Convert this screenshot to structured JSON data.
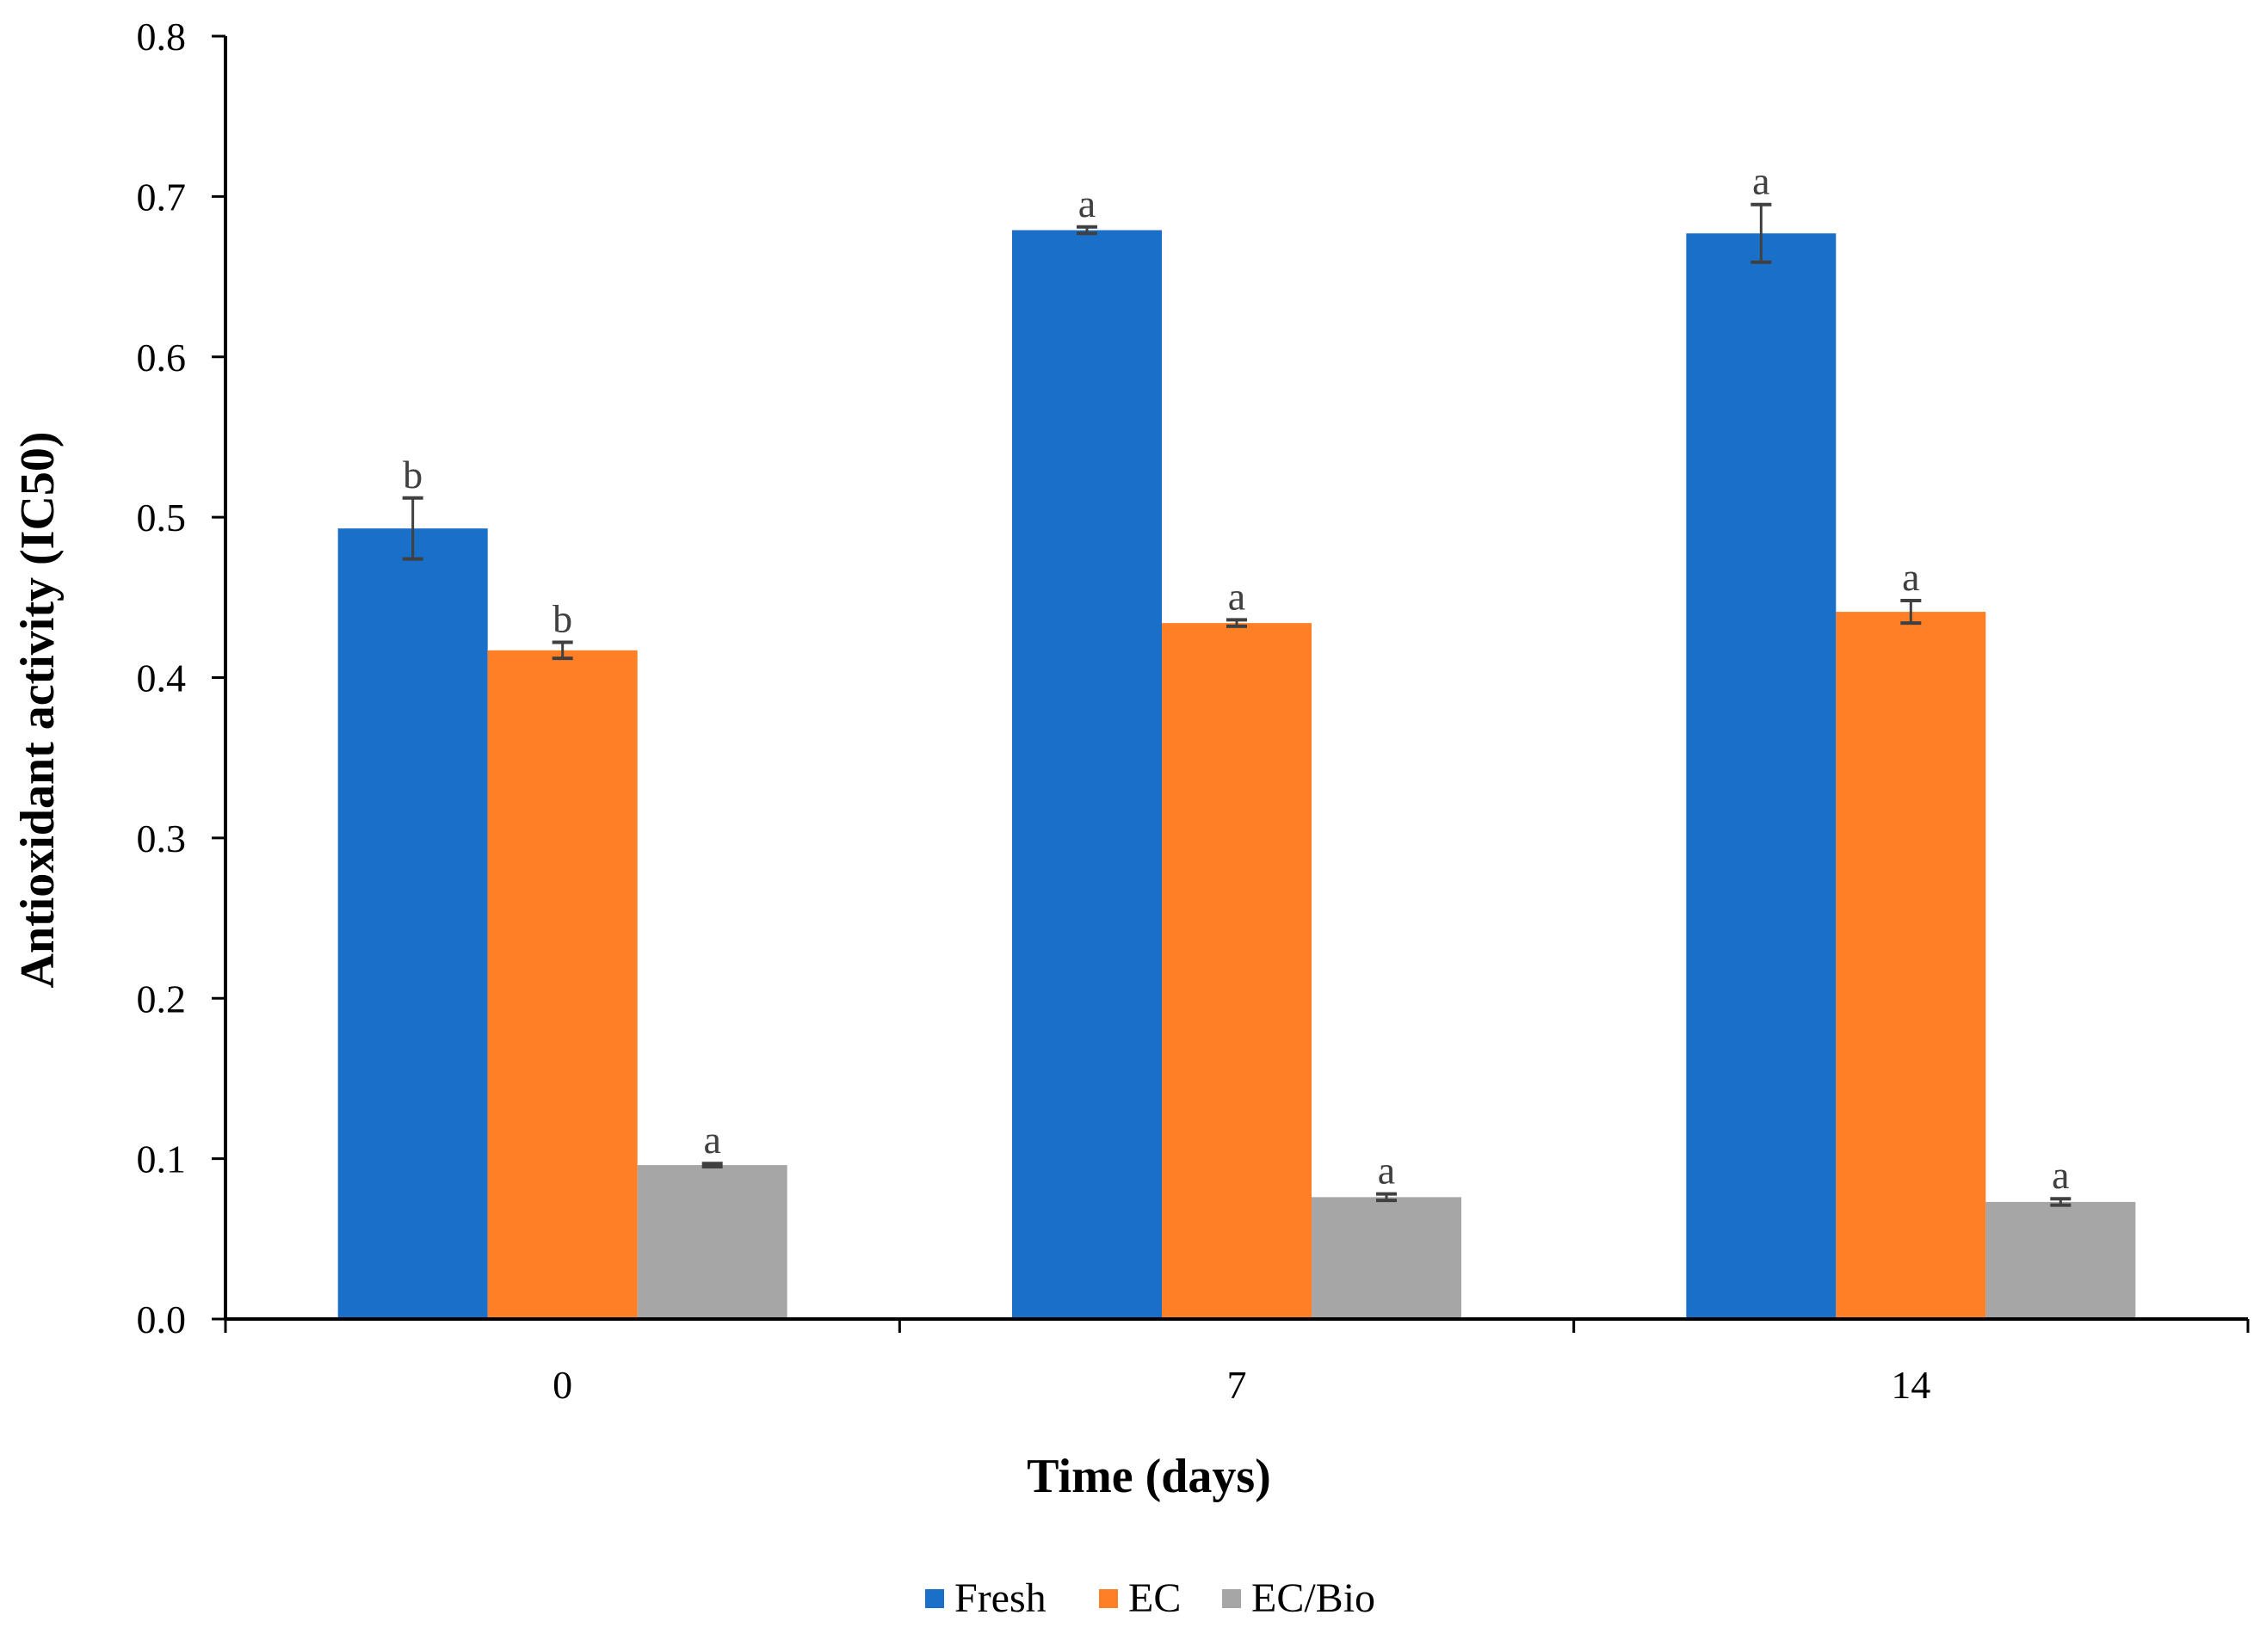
{
  "chart_data": {
    "type": "bar",
    "title": "",
    "xlabel": "Time (days)",
    "ylabel": "Antioxidant  activity (IC50)",
    "categories": [
      "0",
      "7",
      "14"
    ],
    "ylim": [
      0,
      0.8
    ],
    "yticks": [
      "0.0",
      "0.1",
      "0.2",
      "0.3",
      "0.4",
      "0.5",
      "0.6",
      "0.7",
      "0.8"
    ],
    "grid": false,
    "legend_position": "bottom",
    "series": [
      {
        "name": "Fresh",
        "color": "#1a70c8",
        "values": [
          0.493,
          0.679,
          0.677
        ],
        "errors": [
          0.019,
          0.002,
          0.018
        ],
        "letters": [
          "b",
          "a",
          "a"
        ]
      },
      {
        "name": "EC",
        "color": "#fe7f26",
        "values": [
          0.417,
          0.434,
          0.441
        ],
        "errors": [
          0.005,
          0.002,
          0.007
        ],
        "letters": [
          "b",
          "a",
          "a"
        ]
      },
      {
        "name": "EC/Bio",
        "color": "#a6a6a6",
        "values": [
          0.096,
          0.076,
          0.073
        ],
        "errors": [
          0.001,
          0.002,
          0.002
        ],
        "letters": [
          "a",
          "a",
          "a"
        ]
      }
    ]
  }
}
